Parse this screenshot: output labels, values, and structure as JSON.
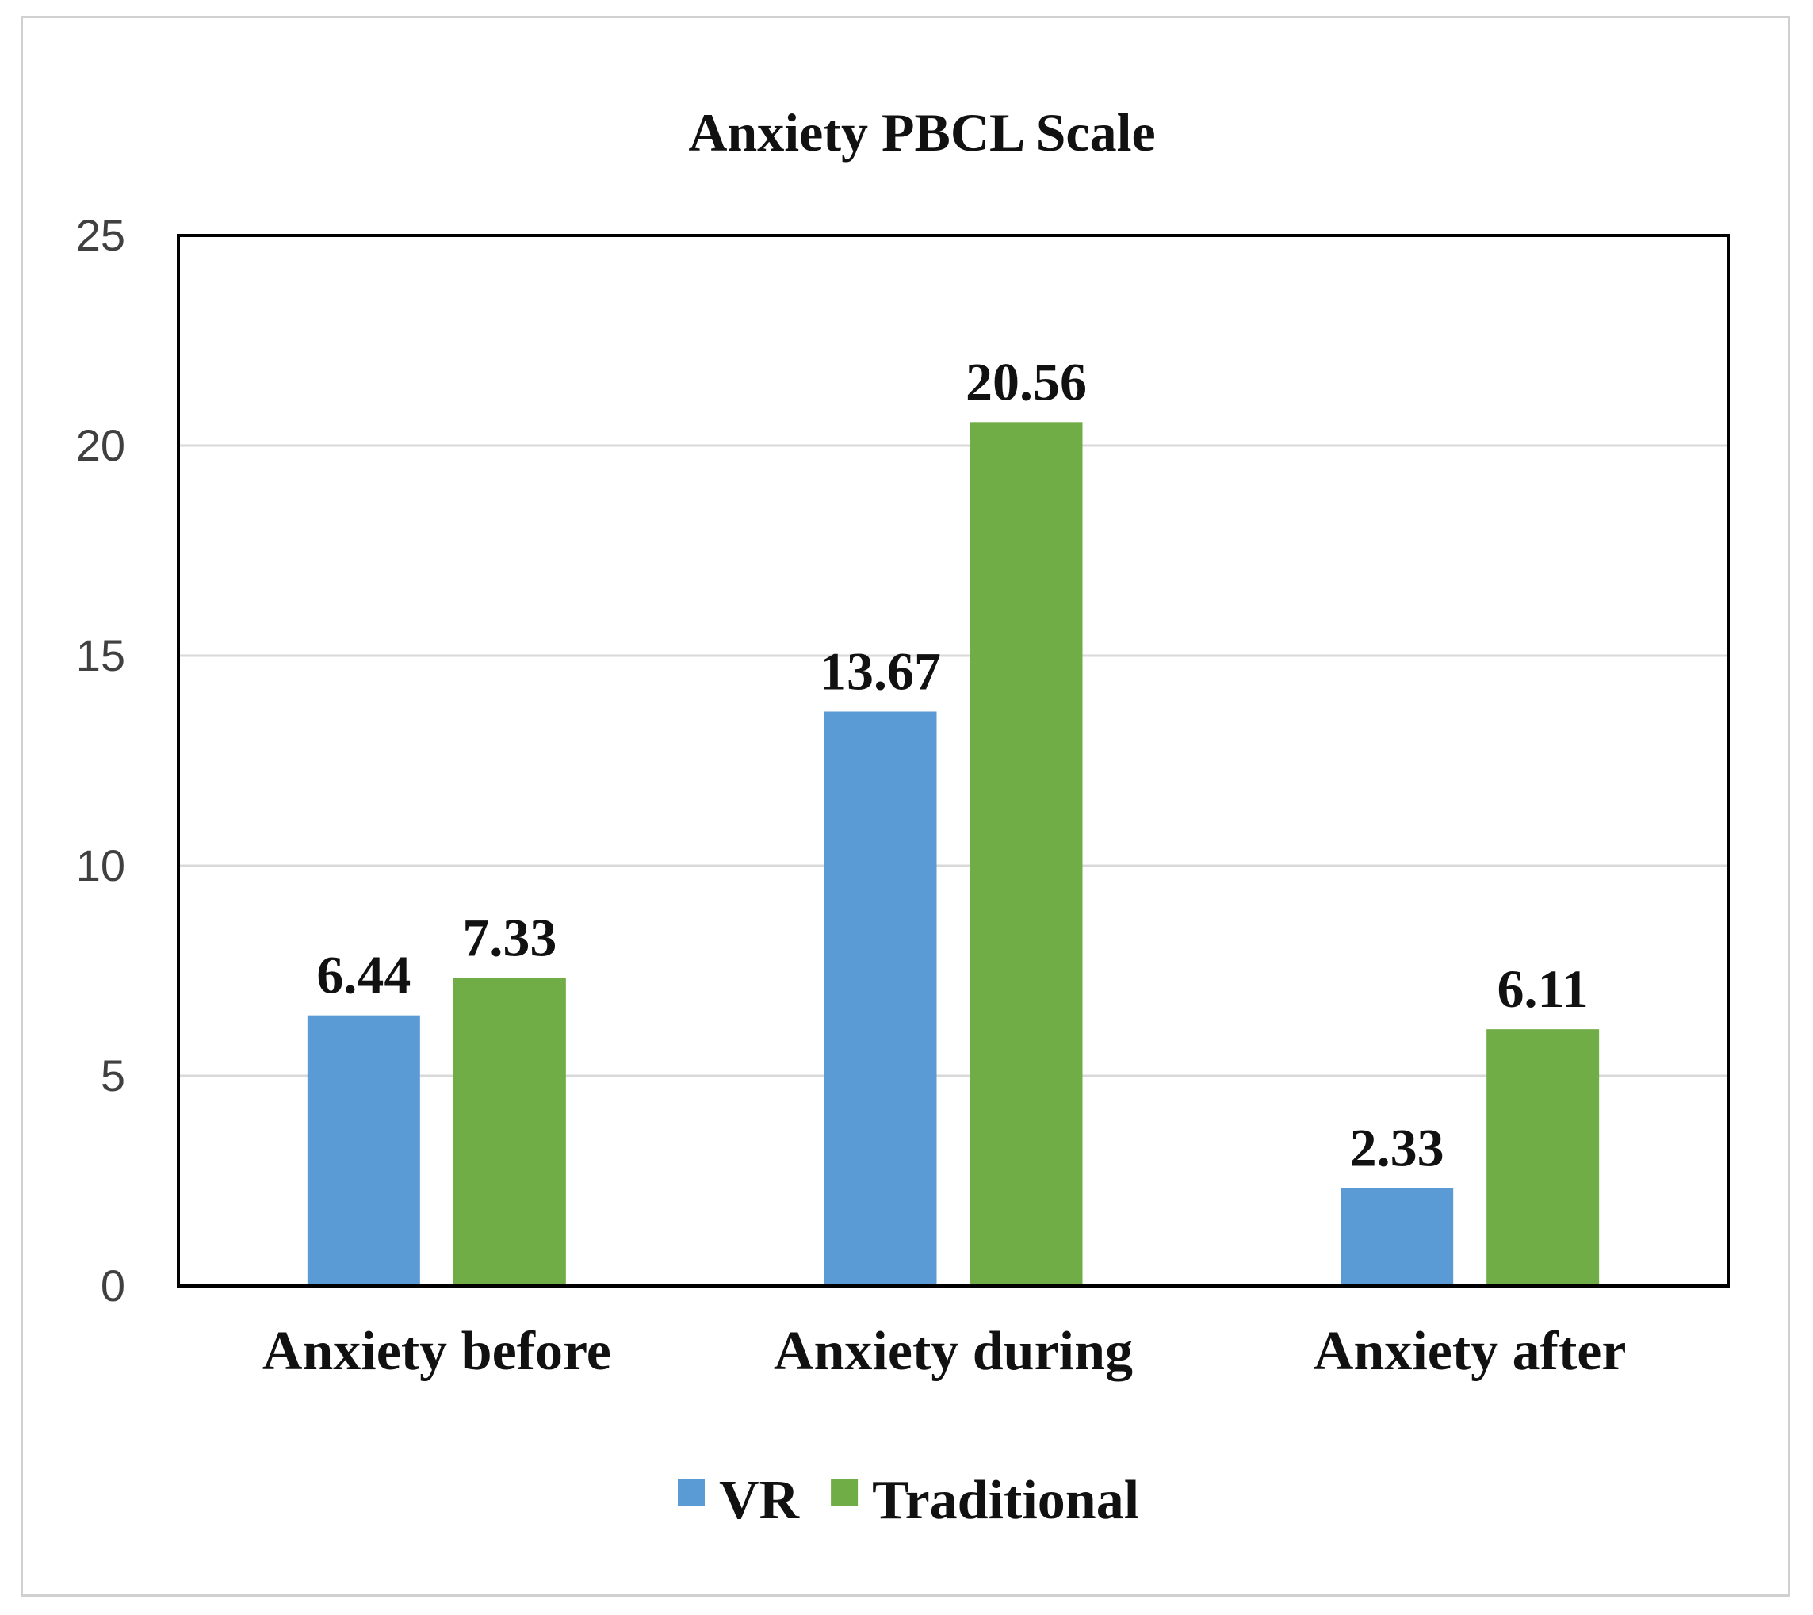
{
  "chart_data": {
    "type": "bar",
    "title": "Anxiety PBCL Scale",
    "categories": [
      "Anxiety before",
      "Anxiety during",
      "Anxiety after"
    ],
    "series": [
      {
        "name": "VR",
        "values": [
          6.44,
          13.67,
          2.33
        ],
        "labels": [
          "6.44",
          "13.67",
          "2.33"
        ],
        "color": "#5b9bd5"
      },
      {
        "name": "Traditional",
        "values": [
          7.33,
          20.56,
          6.11
        ],
        "labels": [
          "7.33",
          "20.56",
          "6.11"
        ],
        "color": "#70ad47"
      }
    ],
    "ylim": [
      0,
      25
    ],
    "yticks": [
      "0",
      "5",
      "10",
      "15",
      "20",
      "25"
    ],
    "grid": true,
    "legend_position": "bottom"
  }
}
